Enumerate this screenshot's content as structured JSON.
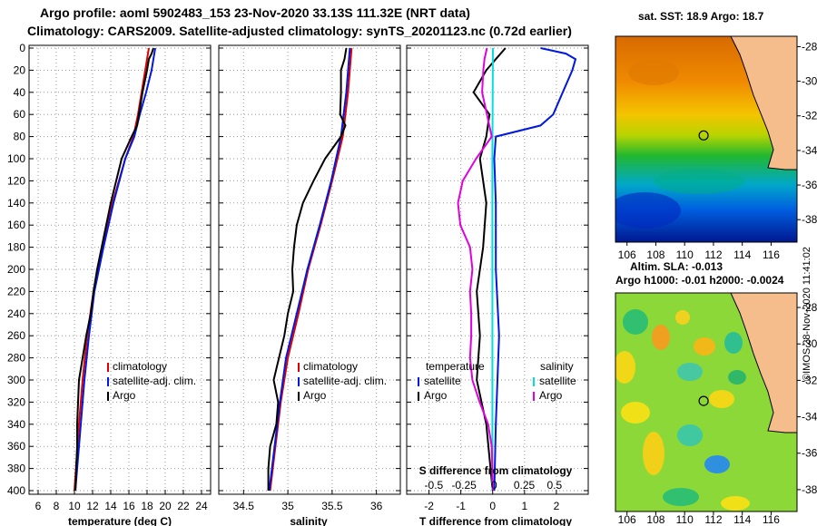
{
  "header": {
    "line1": "Argo profile: aoml 5902483_153 23-Nov-2020 33.13S 111.32E (NRT data)",
    "line2": "Climatology: CARS2009. Satellite-adjusted climatology: synTS_20201123.nc (0.72d earlier)"
  },
  "colors": {
    "climatology": "#e00000",
    "satellite": "#0018e0",
    "argo": "#000000",
    "satellite_salinity": "#00e0e0",
    "argo_salinity_diff": "#e000e0"
  },
  "chart_data": [
    {
      "type": "line",
      "name": "temperature",
      "xlabel": "temperature (deg C)",
      "xlim": [
        5,
        25
      ],
      "xticks": [
        6,
        8,
        10,
        12,
        14,
        16,
        18,
        20,
        22,
        24
      ],
      "ylim": [
        0,
        400
      ],
      "yticks": [
        0,
        20,
        40,
        60,
        80,
        100,
        120,
        140,
        160,
        180,
        200,
        220,
        240,
        260,
        280,
        300,
        320,
        340,
        360,
        380,
        400
      ],
      "legend": [
        "climatology",
        "satellite-adj. clim.",
        "Argo"
      ],
      "series": [
        {
          "name": "climatology",
          "color_key": "climatology",
          "depth": [
            0,
            20,
            40,
            60,
            80,
            100,
            140,
            180,
            220,
            260,
            300,
            340,
            400
          ],
          "values": [
            18.2,
            17.8,
            17.4,
            17.0,
            16.5,
            15.6,
            14.2,
            13.1,
            12.1,
            11.4,
            10.9,
            10.5,
            10.0
          ]
        },
        {
          "name": "satellite-adj. clim.",
          "color_key": "satellite",
          "depth": [
            0,
            20,
            40,
            60,
            80,
            100,
            140,
            180,
            220,
            260,
            300,
            340,
            400
          ],
          "values": [
            18.9,
            18.5,
            17.9,
            17.2,
            16.6,
            15.6,
            14.3,
            13.2,
            12.2,
            11.6,
            11.1,
            10.7,
            10.1
          ]
        },
        {
          "name": "Argo",
          "color_key": "argo",
          "depth": [
            0,
            5,
            10,
            20,
            40,
            60,
            70,
            80,
            100,
            120,
            140,
            160,
            180,
            200,
            220,
            240,
            260,
            280,
            300,
            320,
            340,
            360,
            380,
            400
          ],
          "values": [
            18.7,
            18.5,
            18.2,
            18.0,
            17.5,
            17.1,
            16.9,
            16.3,
            15.2,
            14.6,
            14.0,
            13.5,
            13.0,
            12.5,
            12.1,
            11.8,
            11.3,
            10.9,
            10.5,
            10.4,
            10.3,
            10.3,
            10.2,
            10.1
          ]
        }
      ]
    },
    {
      "type": "line",
      "name": "salinity",
      "xlabel": "salinity",
      "xlim": [
        34.22,
        36.27
      ],
      "xticks": [
        34.5,
        35,
        35.5,
        36
      ],
      "xticklabels": [
        "34.5",
        "35",
        "35.5",
        "36"
      ],
      "ylim": [
        0,
        400
      ],
      "legend": [
        "climatology",
        "satellite-adj. clim.",
        "Argo"
      ],
      "series": [
        {
          "name": "climatology",
          "color_key": "climatology",
          "depth": [
            0,
            40,
            80,
            120,
            160,
            200,
            240,
            280,
            320,
            360,
            400
          ],
          "values": [
            35.72,
            35.68,
            35.62,
            35.5,
            35.37,
            35.23,
            35.12,
            35.0,
            34.92,
            34.86,
            34.8
          ]
        },
        {
          "name": "satellite-adj. clim.",
          "color_key": "satellite",
          "depth": [
            0,
            40,
            80,
            120,
            160,
            200,
            240,
            280,
            320,
            360,
            400
          ],
          "values": [
            35.7,
            35.66,
            35.6,
            35.49,
            35.36,
            35.22,
            35.1,
            34.98,
            34.91,
            34.85,
            34.79
          ]
        },
        {
          "name": "Argo",
          "color_key": "argo",
          "depth": [
            0,
            10,
            20,
            40,
            60,
            70,
            80,
            100,
            120,
            140,
            160,
            180,
            200,
            220,
            240,
            260,
            280,
            300,
            320,
            340,
            360,
            380,
            400
          ],
          "values": [
            35.66,
            35.64,
            35.6,
            35.6,
            35.59,
            35.65,
            35.6,
            35.42,
            35.29,
            35.17,
            35.1,
            35.07,
            35.05,
            35.06,
            35.0,
            34.96,
            34.9,
            34.84,
            34.89,
            34.87,
            34.8,
            34.78,
            34.78
          ]
        }
      ]
    },
    {
      "type": "line",
      "name": "difference",
      "xlabel": "T difference from climatology",
      "xlim": [
        -2.7,
        3.0
      ],
      "xticks": [
        -2,
        -1,
        0,
        1,
        2
      ],
      "xticklabels": [
        "-2",
        "-1",
        "0",
        "1",
        "2"
      ],
      "top_axis_label": "S difference from climatology",
      "top_ticks": [
        -0.5,
        -0.25,
        0,
        0.25,
        0.5
      ],
      "top_ticklabels": [
        "-0.5",
        "-0.25",
        "0",
        "0.25",
        "0.5"
      ],
      "ylim": [
        0,
        400
      ],
      "legend_titles": [
        "temperature",
        "salinity"
      ],
      "legend_temperature": [
        "satellite",
        "Argo"
      ],
      "legend_salinity": [
        "satellite",
        "Argo"
      ],
      "series": [
        {
          "name": "temperature satellite",
          "color_key": "satellite",
          "depth": [
            0,
            5,
            10,
            20,
            40,
            60,
            70,
            80,
            100,
            140,
            200,
            260,
            300,
            340,
            400
          ],
          "values": [
            1.5,
            2.3,
            2.6,
            2.5,
            2.2,
            1.9,
            1.5,
            0.1,
            0.05,
            0.1,
            0.1,
            0.2,
            0.15,
            0.1,
            0.05
          ]
        },
        {
          "name": "temperature Argo",
          "color_key": "argo",
          "depth": [
            0,
            10,
            20,
            40,
            60,
            80,
            100,
            140,
            180,
            220,
            260,
            300,
            340,
            400
          ],
          "values": [
            0.4,
            0.1,
            -0.2,
            -0.6,
            -0.1,
            -0.2,
            -0.4,
            -0.2,
            -0.3,
            -0.5,
            -0.4,
            -0.5,
            -0.2,
            0.0
          ]
        },
        {
          "name": "salinity satellite",
          "color_key": "satellite_salinity",
          "depth": [
            0,
            100,
            200,
            300,
            400
          ],
          "values": [
            -0.01,
            -0.015,
            -0.015,
            -0.015,
            -0.015
          ]
        },
        {
          "name": "salinity Argo",
          "color_key": "argo_salinity_diff",
          "depth": [
            0,
            10,
            20,
            40,
            60,
            80,
            100,
            120,
            140,
            160,
            180,
            200,
            220,
            240,
            260,
            280,
            300,
            320,
            340,
            360,
            400
          ],
          "values": [
            -0.06,
            -0.08,
            -0.09,
            -0.1,
            -0.06,
            -0.02,
            -0.15,
            -0.26,
            -0.3,
            -0.28,
            -0.2,
            -0.18,
            -0.2,
            -0.19,
            -0.19,
            -0.2,
            -0.18,
            -0.12,
            -0.05,
            -0.02,
            -0.01
          ]
        }
      ]
    }
  ],
  "maps": {
    "sst_title": "sat. SST: 18.9 Argo: 18.7",
    "sla_title": "Altim. SLA: -0.013",
    "h_title": "Argo h1000: -0.01 h2000: -0.0024",
    "xticks": [
      106,
      108,
      110,
      112,
      114,
      116
    ],
    "xticklabels": [
      "106",
      "108",
      "110",
      "112",
      "114",
      "116"
    ],
    "yticks": [
      -28,
      -30,
      -32,
      -34,
      -36,
      -38
    ],
    "yticklabels": [
      "-28",
      "-30",
      "-32",
      "-34",
      "-36",
      "-38"
    ],
    "marker_lon": 111.32,
    "marker_lat": -33.13
  },
  "footer": {
    "text": "©IMOS 28-Nov-2020 11:41:02"
  }
}
